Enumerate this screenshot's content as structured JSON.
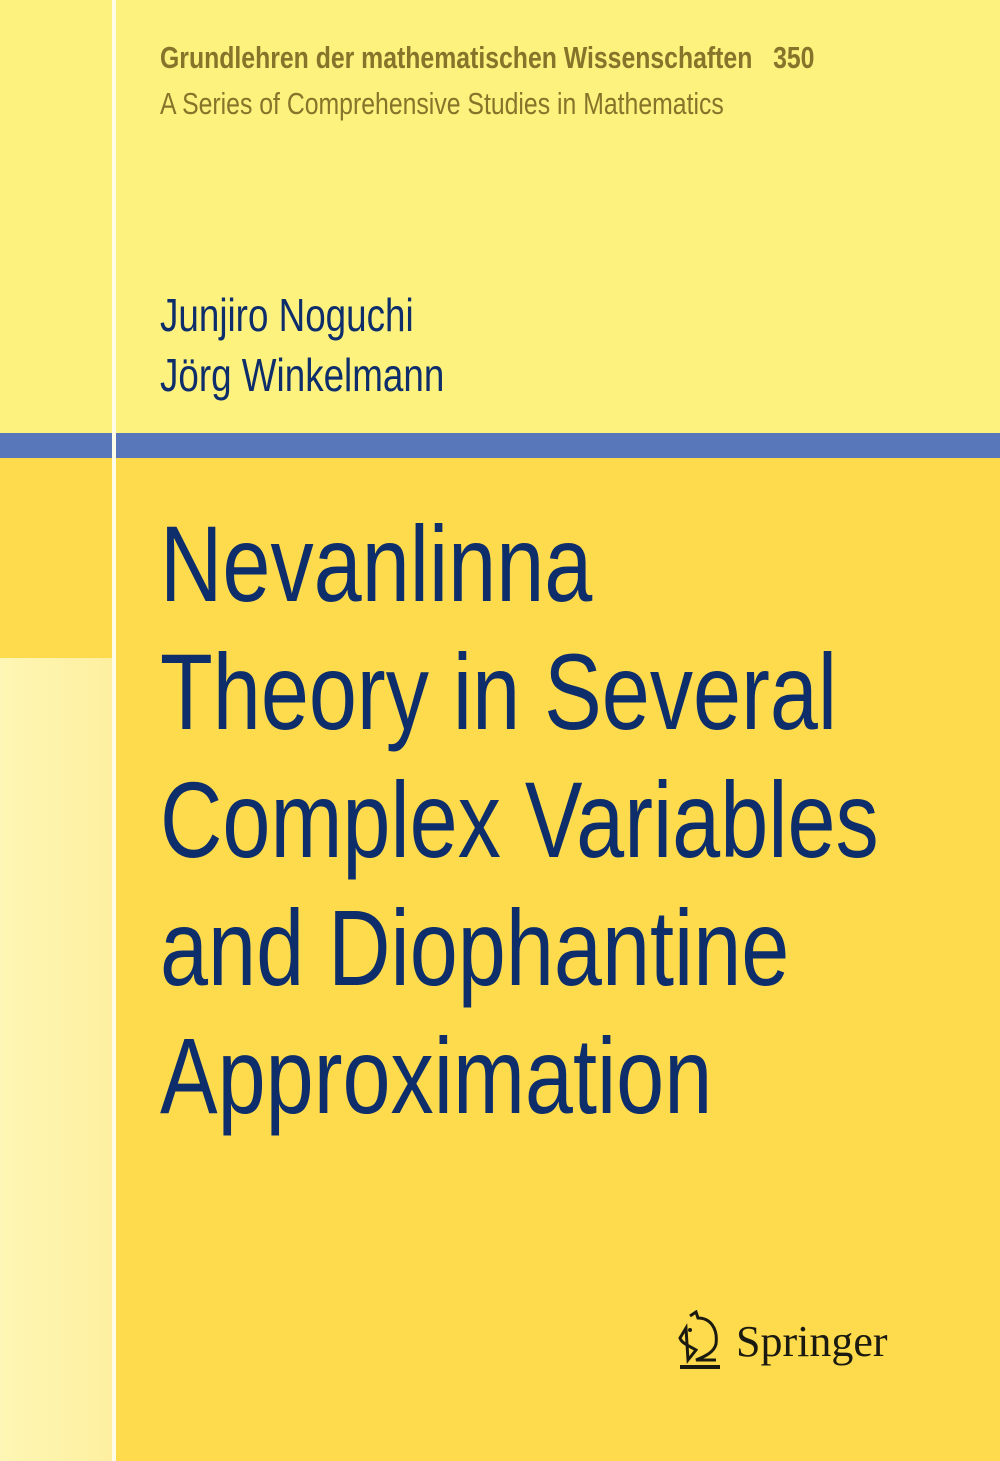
{
  "series": {
    "name": "Grundlehren der mathematischen Wissenschaften",
    "number": "350",
    "subtitle": "A Series of Comprehensive Studies in Mathematics"
  },
  "authors": [
    "Junjiro Noguchi",
    "Jörg Winkelmann"
  ],
  "title_lines": [
    "Nevanlinna",
    "Theory in Several",
    "Complex Variables",
    "and Diophantine",
    "Approximation"
  ],
  "publisher": {
    "name": "Springer",
    "logo_icon": "knight-horse-icon"
  },
  "colors": {
    "top_bg": "#FEF27E",
    "main_bg": "#FEDB4C",
    "band": "#5877BA",
    "title": "#0D2D6B"
  }
}
